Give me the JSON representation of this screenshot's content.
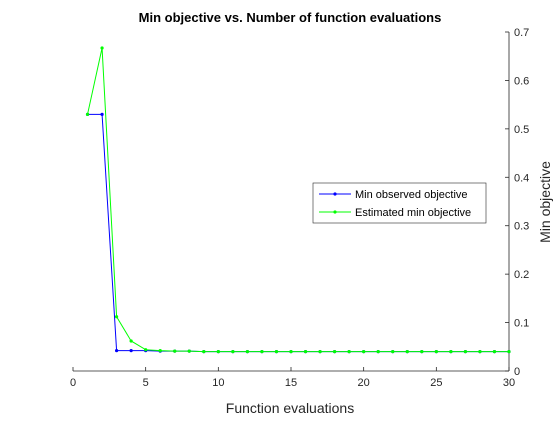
{
  "chart_data": {
    "type": "line",
    "title": "Min objective vs. Number of function evaluations",
    "xlabel": "Function evaluations",
    "ylabel": "Min objective",
    "xlim": [
      0,
      30
    ],
    "ylim": [
      0,
      0.7
    ],
    "xticks": [
      {
        "value": 0,
        "label": "0"
      },
      {
        "value": 5,
        "label": "5"
      },
      {
        "value": 10,
        "label": "10"
      },
      {
        "value": 15,
        "label": "15"
      },
      {
        "value": 20,
        "label": "20"
      },
      {
        "value": 25,
        "label": "25"
      },
      {
        "value": 30,
        "label": "30"
      }
    ],
    "yticks": [
      {
        "value": 0,
        "label": "0"
      },
      {
        "value": 0.1,
        "label": "0.1"
      },
      {
        "value": 0.2,
        "label": "0.2"
      },
      {
        "value": 0.3,
        "label": "0.3"
      },
      {
        "value": 0.4,
        "label": "0.4"
      },
      {
        "value": 0.5,
        "label": "0.5"
      },
      {
        "value": 0.6,
        "label": "0.6"
      },
      {
        "value": 0.7,
        "label": "0.7"
      }
    ],
    "y_axis_location": "right",
    "grid": false,
    "legend_position": "right",
    "x": [
      1,
      2,
      3,
      4,
      5,
      6,
      7,
      8,
      9,
      10,
      11,
      12,
      13,
      14,
      15,
      16,
      17,
      18,
      19,
      20,
      21,
      22,
      23,
      24,
      25,
      26,
      27,
      28,
      29,
      30
    ],
    "series": [
      {
        "name": "Min observed objective",
        "color": "#0000ff",
        "values": [
          0.53,
          0.53,
          0.042,
          0.042,
          0.042,
          0.041,
          0.041,
          0.041,
          0.04,
          0.04,
          0.04,
          0.04,
          0.04,
          0.04,
          0.04,
          0.04,
          0.04,
          0.04,
          0.04,
          0.04,
          0.04,
          0.04,
          0.04,
          0.04,
          0.04,
          0.04,
          0.04,
          0.04,
          0.04,
          0.04
        ]
      },
      {
        "name": "Estimated min objective",
        "color": "#00ff00",
        "values": [
          0.53,
          0.667,
          0.112,
          0.062,
          0.044,
          0.042,
          0.041,
          0.041,
          0.04,
          0.04,
          0.04,
          0.04,
          0.04,
          0.04,
          0.04,
          0.04,
          0.04,
          0.04,
          0.04,
          0.04,
          0.04,
          0.04,
          0.04,
          0.04,
          0.04,
          0.04,
          0.04,
          0.04,
          0.04,
          0.04
        ]
      }
    ]
  }
}
